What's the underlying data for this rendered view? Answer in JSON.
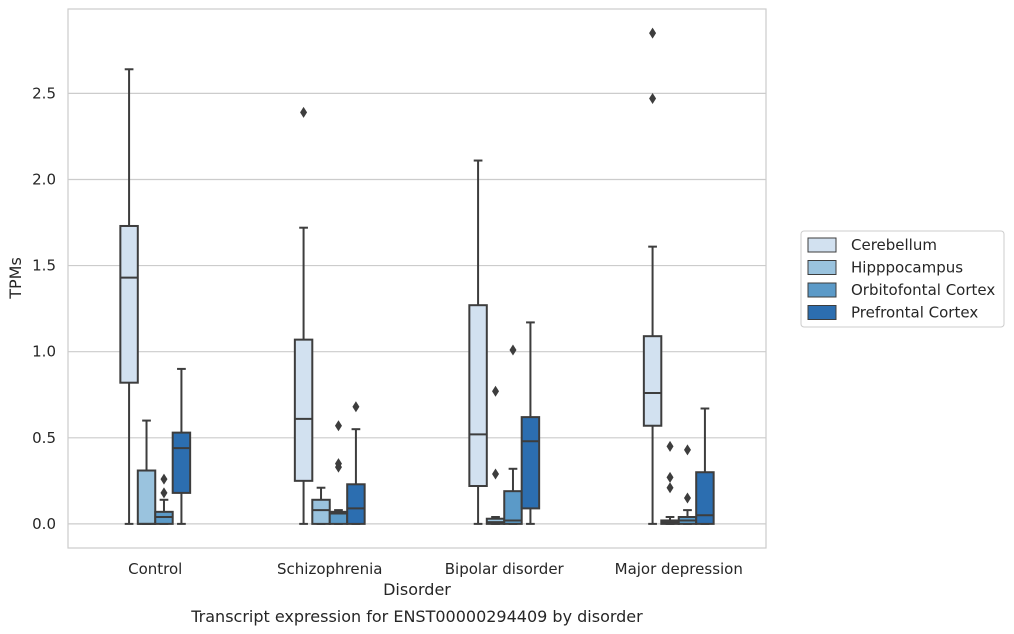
{
  "chart_data": {
    "type": "box",
    "title": "Transcript expression for ENST00000294409 by disorder",
    "xlabel": "Disorder",
    "ylabel": "TPMs",
    "ylim": [
      -0.14,
      2.99
    ],
    "yticks": [
      "0.0",
      "0.5",
      "1.0",
      "1.5",
      "2.0",
      "2.5"
    ],
    "grid": true,
    "legend_position": "right",
    "categories": [
      "Control",
      "Schizophrenia",
      "Bipolar disorder",
      "Major depression"
    ],
    "series": [
      {
        "name": "Cerebellum",
        "color": "#d2e1f0",
        "boxes": [
          {
            "whisker_low": 0.0,
            "q1": 0.82,
            "median": 1.43,
            "q3": 1.73,
            "whisker_high": 2.64,
            "outliers": []
          },
          {
            "whisker_low": 0.0,
            "q1": 0.25,
            "median": 0.61,
            "q3": 1.07,
            "whisker_high": 1.72,
            "outliers": [
              2.39
            ]
          },
          {
            "whisker_low": 0.0,
            "q1": 0.22,
            "median": 0.52,
            "q3": 1.27,
            "whisker_high": 2.11,
            "outliers": []
          },
          {
            "whisker_low": 0.0,
            "q1": 0.57,
            "median": 0.76,
            "q3": 1.09,
            "whisker_high": 1.61,
            "outliers": [
              2.47,
              2.85
            ]
          }
        ]
      },
      {
        "name": "Hipppocampus",
        "color": "#9ac3de",
        "boxes": [
          {
            "whisker_low": 0.0,
            "q1": 0.0,
            "median": 0.0,
            "q3": 0.31,
            "whisker_high": 0.6,
            "outliers": []
          },
          {
            "whisker_low": 0.0,
            "q1": 0.0,
            "median": 0.08,
            "q3": 0.14,
            "whisker_high": 0.21,
            "outliers": []
          },
          {
            "whisker_low": 0.0,
            "q1": 0.0,
            "median": 0.01,
            "q3": 0.03,
            "whisker_high": 0.04,
            "outliers": [
              0.29,
              0.77
            ]
          },
          {
            "whisker_low": 0.0,
            "q1": 0.0,
            "median": 0.01,
            "q3": 0.02,
            "whisker_high": 0.04,
            "outliers": [
              0.21,
              0.27,
              0.45
            ]
          }
        ]
      },
      {
        "name": "Orbitofontal Cortex",
        "color": "#5b9ac8",
        "boxes": [
          {
            "whisker_low": 0.0,
            "q1": 0.0,
            "median": 0.04,
            "q3": 0.07,
            "whisker_high": 0.14,
            "outliers": [
              0.18,
              0.26
            ]
          },
          {
            "whisker_low": 0.0,
            "q1": 0.0,
            "median": 0.06,
            "q3": 0.07,
            "whisker_high": 0.08,
            "outliers": [
              0.33,
              0.35,
              0.57
            ]
          },
          {
            "whisker_low": 0.0,
            "q1": 0.0,
            "median": 0.02,
            "q3": 0.19,
            "whisker_high": 0.32,
            "outliers": [
              1.01
            ]
          },
          {
            "whisker_low": 0.0,
            "q1": 0.0,
            "median": 0.02,
            "q3": 0.04,
            "whisker_high": 0.08,
            "outliers": [
              0.15,
              0.43
            ]
          }
        ]
      },
      {
        "name": "Prefrontal Cortex",
        "color": "#2c6eb0",
        "boxes": [
          {
            "whisker_low": 0.0,
            "q1": 0.18,
            "median": 0.44,
            "q3": 0.53,
            "whisker_high": 0.9,
            "outliers": []
          },
          {
            "whisker_low": 0.0,
            "q1": 0.0,
            "median": 0.09,
            "q3": 0.23,
            "whisker_high": 0.55,
            "outliers": [
              0.68
            ]
          },
          {
            "whisker_low": 0.0,
            "q1": 0.09,
            "median": 0.48,
            "q3": 0.62,
            "whisker_high": 1.17,
            "outliers": []
          },
          {
            "whisker_low": 0.0,
            "q1": 0.0,
            "median": 0.05,
            "q3": 0.3,
            "whisker_high": 0.67,
            "outliers": []
          }
        ]
      }
    ]
  }
}
